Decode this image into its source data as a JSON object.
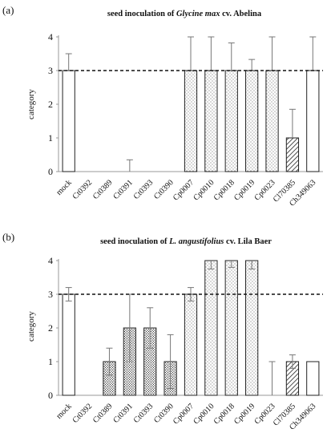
{
  "chart_data": [
    {
      "type": "bar",
      "panel_label": "(a)",
      "title_parts": [
        "seed inoculation of ",
        "Glycine max",
        " cv. Abelina"
      ],
      "ylabel": "category",
      "ylim": [
        0,
        4
      ],
      "yticks": [
        "0",
        "1",
        "2",
        "3",
        "4"
      ],
      "reference_line": 3,
      "categories": [
        "mock",
        "Ct0392",
        "Ct0389",
        "Ct0391",
        "Ct0393",
        "Ct0390",
        "Cp0007",
        "Cp0010",
        "Cp0018",
        "Cp0019",
        "Cp0023",
        "Cl70385",
        "Ch349063"
      ],
      "values": [
        3,
        0,
        0,
        0,
        0,
        0,
        3,
        3,
        3,
        3,
        3,
        1,
        3
      ],
      "err_up": [
        0.5,
        0,
        0,
        0.35,
        0,
        0,
        1.0,
        1.0,
        0.82,
        0.33,
        1.0,
        0.85,
        1.0
      ],
      "err_down": [
        0,
        0,
        0,
        0,
        0,
        0,
        0,
        0,
        0,
        0,
        0,
        0,
        0
      ],
      "patterns": [
        "white",
        "white",
        "white",
        "white",
        "white",
        "white",
        "dots",
        "dots",
        "dots",
        "dots",
        "dots",
        "hatch",
        "white"
      ]
    },
    {
      "type": "bar",
      "panel_label": "(b)",
      "title_parts": [
        "seed inoculation of ",
        "L. angustifolius",
        " cv. Lila Baer"
      ],
      "ylabel": "category",
      "ylim": [
        0,
        4
      ],
      "yticks": [
        "0",
        "1",
        "2",
        "3",
        "4"
      ],
      "reference_line": 3,
      "categories": [
        "mock",
        "Ct0392",
        "Ct0389",
        "Ct0391",
        "Ct0393",
        "Ct0390",
        "Cp0007",
        "Cp0010",
        "Cp0018",
        "Cp0019",
        "Cp0023",
        "Cl70385",
        "Ch349063"
      ],
      "values": [
        3,
        0,
        1,
        2,
        2,
        1,
        3,
        4,
        4,
        4,
        0,
        1,
        1
      ],
      "err_up": [
        0.2,
        0,
        0.4,
        1.0,
        0.6,
        0.8,
        0.2,
        0,
        0,
        0,
        1.0,
        0.2,
        0
      ],
      "err_down": [
        0.2,
        0,
        0.4,
        1.0,
        0.6,
        0.8,
        0.2,
        0.25,
        0.2,
        0.25,
        0,
        0.2,
        0
      ],
      "patterns": [
        "white",
        "white",
        "dense",
        "dense",
        "dense",
        "dense",
        "dots",
        "dots",
        "dots",
        "dots",
        "dots",
        "hatch",
        "white"
      ]
    }
  ]
}
